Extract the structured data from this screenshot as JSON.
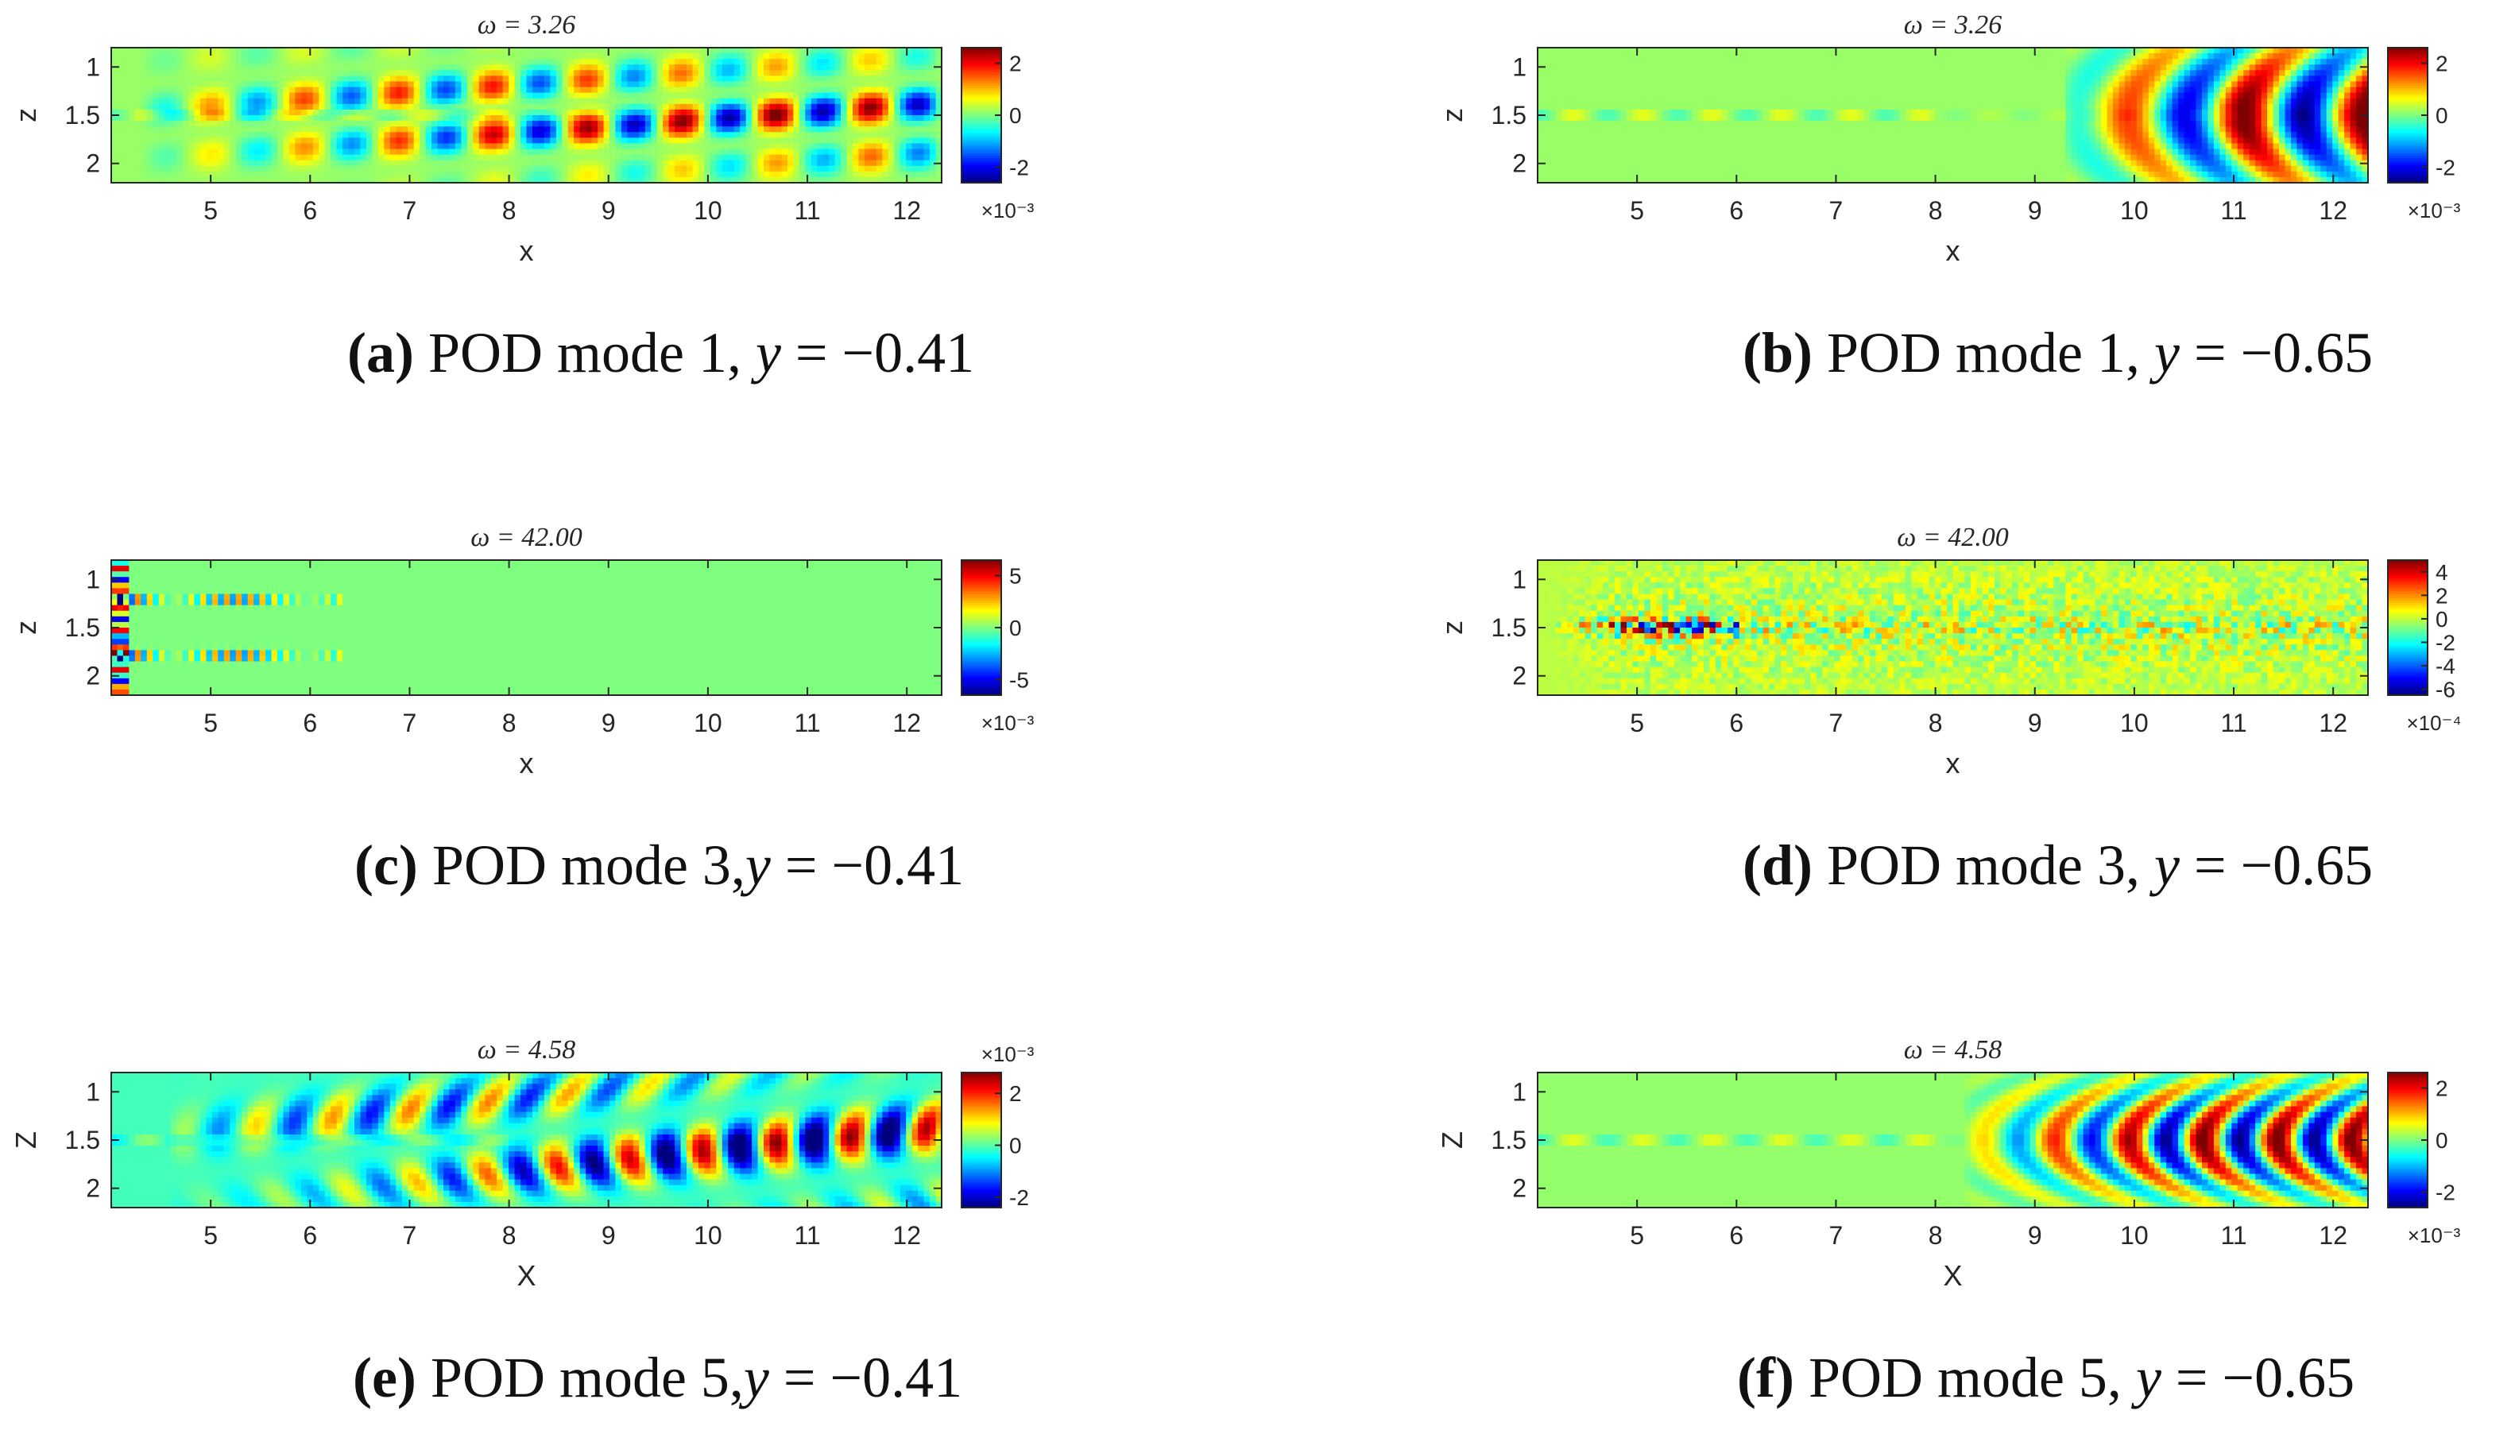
{
  "colors": {
    "jet": [
      "#00007f",
      "#0000ff",
      "#007fff",
      "#00ffff",
      "#7fff7f",
      "#ffff00",
      "#ff7f00",
      "#ff0000",
      "#7f0000"
    ],
    "axis": "#262626",
    "background_mode": "#90ee6a"
  },
  "chart_data": [
    {
      "id": "a",
      "type": "heatmap",
      "title": "ω = 3.26",
      "xlabel": "x",
      "ylabel": "z",
      "xlim": [
        4.0,
        12.35
      ],
      "ylim": [
        0.8,
        2.2
      ],
      "xticks": [
        "5",
        "6",
        "7",
        "8",
        "9",
        "10",
        "11",
        "12"
      ],
      "xtick_values": [
        5,
        6,
        7,
        8,
        9,
        10,
        11,
        12
      ],
      "yticks": [
        "1",
        "1.5",
        "2"
      ],
      "ytick_values": [
        1,
        1.5,
        2
      ],
      "colorbar": {
        "min": -2.6,
        "max": 2.6,
        "ticks": [
          "2",
          "0",
          "-2"
        ],
        "tick_values": [
          2,
          0,
          -2
        ],
        "exponent": "×10⁻³"
      },
      "pattern": {
        "kind": "shear",
        "start": 4.3,
        "strength": 0.85,
        "wavelength": 0.95,
        "z_wave": 0.55,
        "lean": 0.0,
        "bg": 0.05,
        "spread": 0.55,
        "growth": 1.4
      },
      "caption": {
        "label": "(a)",
        "text": " POD mode 1, ",
        "var": "y",
        "eq": " = −0.41"
      }
    },
    {
      "id": "b",
      "type": "heatmap",
      "title": "ω = 3.26",
      "xlabel": "x",
      "ylabel": "z",
      "xlim": [
        4.0,
        12.35
      ],
      "ylim": [
        0.8,
        2.2
      ],
      "xticks": [
        "5",
        "6",
        "7",
        "8",
        "9",
        "10",
        "11",
        "12"
      ],
      "xtick_values": [
        5,
        6,
        7,
        8,
        9,
        10,
        11,
        12
      ],
      "yticks": [
        "1",
        "1.5",
        "2"
      ],
      "ytick_values": [
        1,
        1.5,
        2
      ],
      "colorbar": {
        "min": -2.6,
        "max": 2.6,
        "ticks": [
          "2",
          "0",
          "-2"
        ],
        "tick_values": [
          2,
          0,
          -2
        ],
        "exponent": "×10⁻³"
      },
      "pattern": {
        "kind": "wave",
        "start": 9.3,
        "strength": 1.0,
        "wavelength": 1.2,
        "z_wave": 0.0,
        "lean": 0.5,
        "bg": 0.05,
        "spread": 0.75,
        "growth": 0.6
      },
      "caption": {
        "label": "(b)",
        "text": " POD mode 1, ",
        "var": "y",
        "eq": " = −0.65"
      }
    },
    {
      "id": "c",
      "type": "heatmap",
      "title": "ω = 42.00",
      "xlabel": "x",
      "ylabel": "z",
      "xlim": [
        4.0,
        12.35
      ],
      "ylim": [
        0.8,
        2.2
      ],
      "xticks": [
        "5",
        "6",
        "7",
        "8",
        "9",
        "10",
        "11",
        "12"
      ],
      "xtick_values": [
        5,
        6,
        7,
        8,
        9,
        10,
        11,
        12
      ],
      "yticks": [
        "1",
        "1.5",
        "2"
      ],
      "ytick_values": [
        1,
        1.5,
        2
      ],
      "colorbar": {
        "min": -6.5,
        "max": 6.5,
        "ticks": [
          "5",
          "0",
          "-5"
        ],
        "tick_values": [
          5,
          0,
          -5
        ],
        "exponent": "×10⁻³"
      },
      "pattern": {
        "kind": "edges",
        "start": 4.0,
        "strength": 1.0,
        "wavelength": 0.12,
        "z_wave": 0.0,
        "lean": 0.0,
        "bg": 0.0,
        "spread": 0.0,
        "growth": 0.0
      },
      "caption": {
        "label": "(c)",
        "text": " POD mode 3,",
        "var": "y",
        "eq": " = −0.41"
      }
    },
    {
      "id": "d",
      "type": "heatmap",
      "title": "ω = 42.00",
      "xlabel": "x",
      "ylabel": "z",
      "xlim": [
        4.0,
        12.35
      ],
      "ylim": [
        0.8,
        2.2
      ],
      "xticks": [
        "5",
        "6",
        "7",
        "8",
        "9",
        "10",
        "11",
        "12"
      ],
      "xtick_values": [
        5,
        6,
        7,
        8,
        9,
        10,
        11,
        12
      ],
      "yticks": [
        "1",
        "1.5",
        "2"
      ],
      "ytick_values": [
        1,
        1.5,
        2
      ],
      "colorbar": {
        "min": -6.5,
        "max": 5.0,
        "ticks": [
          "4",
          "2",
          "0",
          "-2",
          "-4",
          "-6"
        ],
        "tick_values": [
          4,
          2,
          0,
          -2,
          -4,
          -6
        ],
        "exponent": "×10⁻⁴"
      },
      "pattern": {
        "kind": "noise",
        "start": 4.1,
        "strength": 0.7,
        "wavelength": 0.1,
        "z_wave": 0.0,
        "lean": 0.0,
        "bg": 0.12,
        "spread": 0.3,
        "growth": 0.0
      },
      "caption": {
        "label": "(d)",
        "text": " POD mode 3, ",
        "var": "y",
        "eq": " = −0.65"
      }
    },
    {
      "id": "e",
      "type": "heatmap",
      "title": "ω = 4.58",
      "xlabel": "X",
      "ylabel": "Z",
      "xlim": [
        4.0,
        12.35
      ],
      "ylim": [
        0.8,
        2.2
      ],
      "xticks": [
        "5",
        "6",
        "7",
        "8",
        "9",
        "10",
        "11",
        "12"
      ],
      "xtick_values": [
        5,
        6,
        7,
        8,
        9,
        10,
        11,
        12
      ],
      "yticks": [
        "1",
        "1.5",
        "2"
      ],
      "ytick_values": [
        1,
        1.5,
        2
      ],
      "colorbar": {
        "min": -2.4,
        "max": 2.8,
        "ticks": [
          "2",
          "0",
          "-2"
        ],
        "tick_values": [
          2,
          0,
          -2
        ],
        "exponent": "×10⁻³",
        "exponent_top": true
      },
      "pattern": {
        "kind": "shear",
        "start": 4.6,
        "strength": 0.95,
        "wavelength": 0.75,
        "z_wave": 0.9,
        "lean": 0.35,
        "bg": -0.12,
        "spread": 0.65,
        "growth": 0.9
      },
      "caption": {
        "label": "(e)",
        "text": " POD mode 5,",
        "var": "y",
        "eq": " = −0.41"
      }
    },
    {
      "id": "f",
      "type": "heatmap",
      "title": "ω = 4.58",
      "xlabel": "X",
      "ylabel": "Z",
      "xlim": [
        4.0,
        12.35
      ],
      "ylim": [
        0.8,
        2.2
      ],
      "xticks": [
        "5",
        "6",
        "7",
        "8",
        "9",
        "10",
        "11",
        "12"
      ],
      "xtick_values": [
        5,
        6,
        7,
        8,
        9,
        10,
        11,
        12
      ],
      "yticks": [
        "1",
        "1.5",
        "2"
      ],
      "ytick_values": [
        1,
        1.5,
        2
      ],
      "colorbar": {
        "min": -2.6,
        "max": 2.6,
        "ticks": [
          "2",
          "0",
          "-2"
        ],
        "tick_values": [
          2,
          0,
          -2
        ],
        "exponent": "×10⁻³"
      },
      "pattern": {
        "kind": "wave",
        "start": 8.3,
        "strength": 1.0,
        "wavelength": 0.75,
        "z_wave": 0.0,
        "lean": 0.9,
        "bg": 0.04,
        "spread": 0.55,
        "growth": 0.7
      },
      "caption": {
        "label": "(f)",
        "text": " POD mode 5, ",
        "var": "y",
        "eq": " = −0.65"
      }
    }
  ]
}
